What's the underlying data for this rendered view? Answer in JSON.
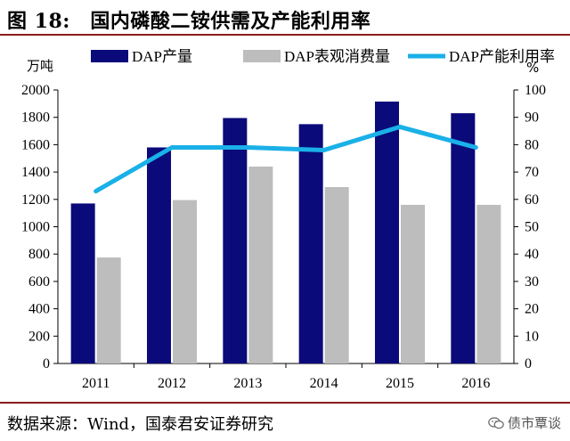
{
  "header": {
    "title": "图 18:　国内磷酸二铵供需及产能利用率"
  },
  "footer": {
    "source": "数据来源：Wind，国泰君安证券研究",
    "watermark": "债市覃谈",
    "watermark_icon": "wechat-icon"
  },
  "colors": {
    "production": "#0a0a7a",
    "consumption": "#bdbdbd",
    "utilization": "#1ab0e8",
    "title_rule": "#8a1c1c"
  },
  "chart_data": {
    "type": "bar+line",
    "title": "国内磷酸二铵供需及产能利用率",
    "categories": [
      "2011",
      "2012",
      "2013",
      "2014",
      "2015",
      "2016"
    ],
    "left_axis": {
      "unit_label": "万吨",
      "ylim": [
        0,
        2000
      ],
      "ticks": [
        "0",
        "200",
        "400",
        "600",
        "800",
        "1000",
        "1200",
        "1400",
        "1600",
        "1800",
        "2000"
      ]
    },
    "right_axis": {
      "unit_label": "%",
      "ylim": [
        0,
        100
      ],
      "ticks": [
        "0",
        "10",
        "20",
        "30",
        "40",
        "50",
        "60",
        "70",
        "80",
        "90",
        "100"
      ]
    },
    "series": [
      {
        "name": "DAP产量",
        "kind": "bar",
        "axis": "left",
        "values": [
          1170,
          1580,
          1795,
          1750,
          1915,
          1830
        ]
      },
      {
        "name": "DAP表观消费量",
        "kind": "bar",
        "axis": "left",
        "values": [
          775,
          1195,
          1440,
          1290,
          1160,
          1160
        ]
      },
      {
        "name": "DAP产能利用率",
        "kind": "line",
        "axis": "right",
        "values": [
          63,
          79,
          79,
          78,
          86.5,
          79
        ]
      }
    ],
    "legend_position": "top",
    "grid": false
  }
}
